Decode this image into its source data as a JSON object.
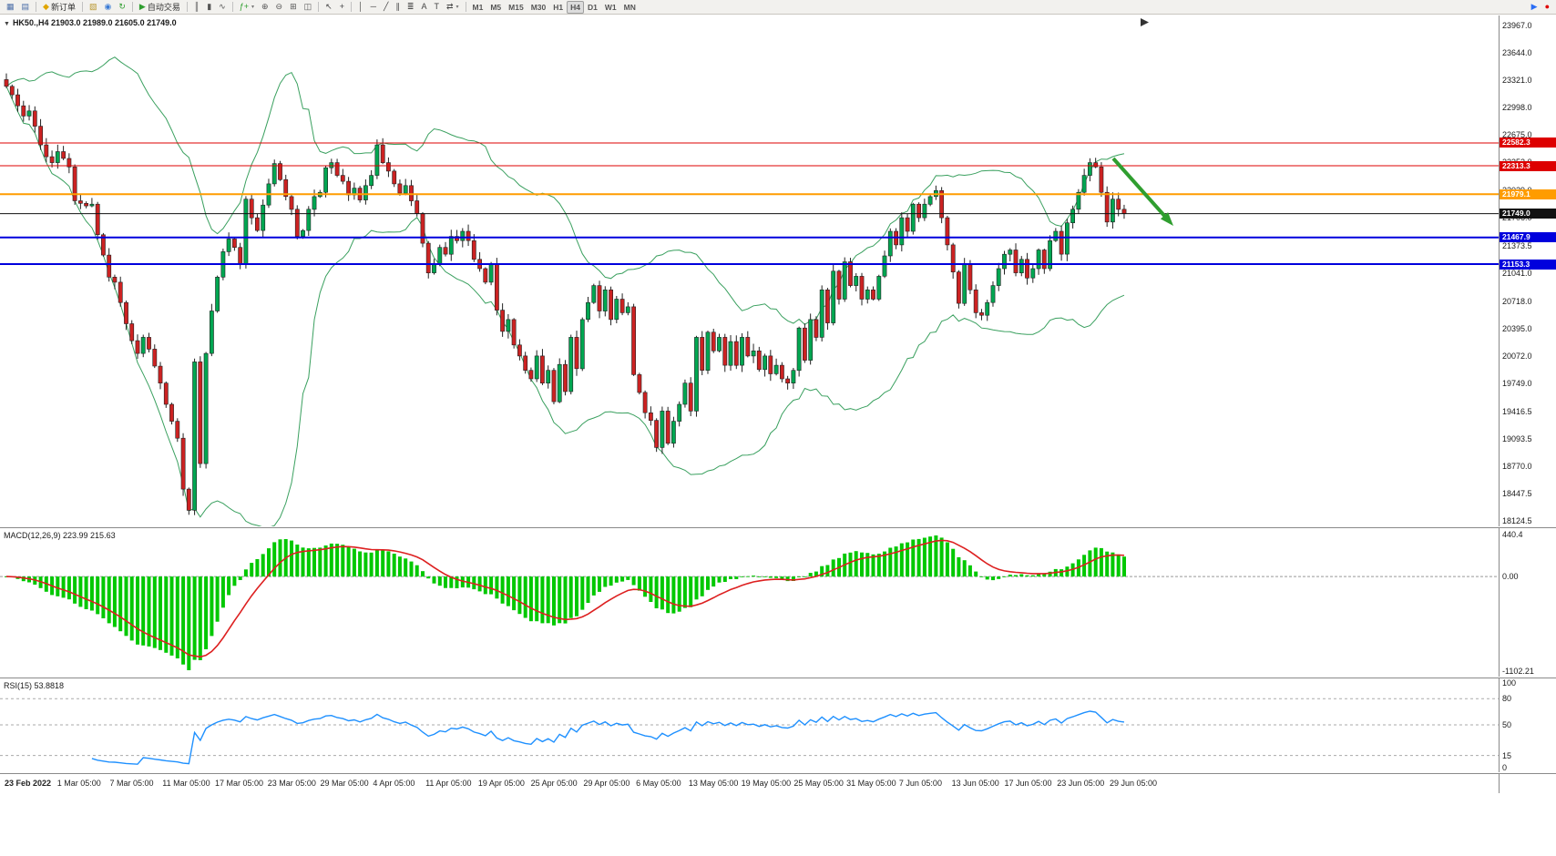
{
  "toolbar": {
    "groups": [
      {
        "items": [
          {
            "name": "market-watch-button",
            "glyph": "▦",
            "color": "#4a6da7"
          },
          {
            "name": "navigator-button",
            "glyph": "▤",
            "color": "#4a6da7"
          }
        ]
      },
      {
        "items": [
          {
            "name": "new-order-button",
            "glyph": "◆",
            "color": "#e0a500",
            "label": "新订单"
          }
        ]
      },
      {
        "items": [
          {
            "name": "metaeditor-button",
            "glyph": "▧",
            "color": "#b8962e"
          },
          {
            "name": "accounts-button",
            "glyph": "◉",
            "color": "#3a7bd5"
          },
          {
            "name": "refresh-button",
            "glyph": "↻",
            "color": "#2f9e2f"
          }
        ]
      },
      {
        "items": [
          {
            "name": "autotrading-button",
            "glyph": "▶",
            "color": "#2f9e2f",
            "label": "自动交易"
          }
        ]
      },
      {
        "items": [
          {
            "name": "bar-chart-button",
            "glyph": "║",
            "color": "#555555"
          },
          {
            "name": "candlestick-chart-button",
            "glyph": "▮",
            "color": "#555555"
          },
          {
            "name": "line-chart-button",
            "glyph": "∿",
            "color": "#555555"
          }
        ]
      },
      {
        "items": [
          {
            "name": "indicators-button",
            "glyph": "ƒ+",
            "color": "#2f9e2f",
            "caret": true
          },
          {
            "name": "zoom-in-button",
            "glyph": "⊕",
            "color": "#555555"
          },
          {
            "name": "zoom-out-button",
            "glyph": "⊖",
            "color": "#555555"
          },
          {
            "name": "tile-windows-button",
            "glyph": "⊞",
            "color": "#555555"
          },
          {
            "name": "cascade-windows-button",
            "glyph": "◫",
            "color": "#555555"
          }
        ]
      },
      {
        "items": [
          {
            "name": "cursor-button",
            "glyph": "↖",
            "color": "#444444"
          },
          {
            "name": "crosshair-button",
            "glyph": "+",
            "color": "#444444"
          }
        ]
      },
      {
        "items": [
          {
            "name": "vertical-line-button",
            "glyph": "│",
            "color": "#444444"
          },
          {
            "name": "horizontal-line-button",
            "glyph": "─",
            "color": "#444444"
          },
          {
            "name": "trendline-button",
            "glyph": "╱",
            "color": "#444444"
          },
          {
            "name": "channel-button",
            "glyph": "∥",
            "color": "#444444"
          },
          {
            "name": "fibonacci-button",
            "glyph": "≣",
            "color": "#444444"
          },
          {
            "name": "text-button",
            "glyph": "A",
            "color": "#444444"
          },
          {
            "name": "text-label-button",
            "glyph": "T",
            "color": "#444444"
          },
          {
            "name": "arrows-button",
            "glyph": "⇄",
            "color": "#444444",
            "caret": true
          }
        ]
      },
      {
        "items": [
          {
            "name": "tf-m1-button",
            "label": "M1",
            "tf": true
          },
          {
            "name": "tf-m5-button",
            "label": "M5",
            "tf": true
          },
          {
            "name": "tf-m15-button",
            "label": "M15",
            "tf": true
          },
          {
            "name": "tf-m30-button",
            "label": "M30",
            "tf": true
          },
          {
            "name": "tf-h1-button",
            "label": "H1",
            "tf": true
          },
          {
            "name": "tf-h4-button",
            "label": "H4",
            "tf": true,
            "active": true
          },
          {
            "name": "tf-d1-button",
            "label": "D1",
            "tf": true
          },
          {
            "name": "tf-w1-button",
            "label": "W1",
            "tf": true
          },
          {
            "name": "tf-mn-button",
            "label": "MN",
            "tf": true
          }
        ]
      },
      {
        "spacer": true,
        "items": [
          {
            "name": "one-click-trading-icon",
            "glyph": "▶",
            "color": "#2a6df5"
          },
          {
            "name": "record-icon",
            "glyph": "●",
            "color": "#e00000"
          }
        ]
      }
    ]
  },
  "main_chart": {
    "collapse_icon": "▼",
    "symbol_label": "HK50.,H4",
    "ohlc_label": "21903.0 21989.0 21605.0 21749.0"
  },
  "macd_panel": {
    "label": "MACD(12,26,9) 223.99 215.63"
  },
  "rsi_panel": {
    "label": "RSI(15) 53.8818"
  },
  "chart_data": {
    "type": "candlestick",
    "symbol": "HK50.",
    "timeframe": "H4",
    "current_ohlc": {
      "open": "21903.0",
      "high": "21989.0",
      "low": "21605.0",
      "close": "21749.0"
    },
    "closes": [
      23250,
      23150,
      23020,
      22900,
      22960,
      22780,
      22560,
      22420,
      22350,
      22480,
      22400,
      22300,
      21900,
      21870,
      21840,
      21860,
      21500,
      21260,
      21000,
      20940,
      20700,
      20450,
      20250,
      20100,
      20290,
      20150,
      19950,
      19750,
      19500,
      19300,
      19100,
      18500,
      18250,
      20000,
      18800,
      20100,
      20600,
      21000,
      21300,
      21450,
      21350,
      21150,
      21920,
      21700,
      21550,
      21850,
      22100,
      22340,
      22150,
      21950,
      21800,
      21480,
      21550,
      21800,
      21950,
      22000,
      22290,
      22350,
      22200,
      22130,
      21970,
      22050,
      21910,
      22080,
      22200,
      22560,
      22350,
      22250,
      22100,
      21990,
      22080,
      21900,
      21750,
      21400,
      21050,
      21150,
      21350,
      21270,
      21480,
      21430,
      21540,
      21430,
      21210,
      21100,
      20940,
      21160,
      20610,
      20360,
      20500,
      20200,
      20070,
      19900,
      19800,
      20070,
      19750,
      19900,
      19530,
      19970,
      19650,
      20290,
      19920,
      20500,
      20700,
      20900,
      20600,
      20850,
      20500,
      20740,
      20580,
      20650,
      19850,
      19640,
      19400,
      19310,
      18990,
      19420,
      19040,
      19300,
      19500,
      19750,
      19420,
      20290,
      19900,
      20350,
      20130,
      20290,
      19960,
      20240,
      19960,
      20290,
      20070,
      20130,
      19910,
      20070,
      19860,
      19960,
      19800,
      19750,
      19900,
      20400,
      20020,
      20500,
      20290,
      20850,
      20460,
      21070,
      20740,
      21180,
      20900,
      21010,
      20740,
      20850,
      20740,
      21010,
      21250,
      21540,
      21380,
      21700,
      21540,
      21860,
      21700,
      21860,
      21950,
      22020,
      21700,
      21380,
      21060,
      20690,
      21160,
      20850,
      20580,
      20550,
      20700,
      20900,
      21100,
      21270,
      21320,
      21050,
      21210,
      20990,
      21100,
      21320,
      21100,
      21430,
      21540,
      21270,
      21640,
      21800,
      22000,
      22200,
      22350,
      22300,
      22000,
      21650,
      21920,
      21800,
      21749
    ],
    "y_axis": {
      "labels": [
        "23967.0",
        "23644.0",
        "23321.0",
        "22998.0",
        "22675.0",
        "22352.0",
        "22029.0",
        "21706.0",
        "21373.5",
        "21041.0",
        "20718.0",
        "20395.0",
        "20072.0",
        "19749.0",
        "19416.5",
        "19093.5",
        "18770.0",
        "18447.5",
        "18124.5"
      ],
      "min": 18124.5,
      "max": 23967.0
    },
    "x_axis_labels": [
      "23 Feb 2022",
      "1 Mar 05:00",
      "7 Mar 05:00",
      "11 Mar 05:00",
      "17 Mar 05:00",
      "23 Mar 05:00",
      "29 Mar 05:00",
      "4 Apr 05:00",
      "11 Apr 05:00",
      "19 Apr 05:00",
      "25 Apr 05:00",
      "29 Apr 05:00",
      "6 May 05:00",
      "13 May 05:00",
      "19 May 05:00",
      "25 May 05:00",
      "31 May 05:00",
      "7 Jun 05:00",
      "13 Jun 05:00",
      "17 Jun 05:00",
      "23 Jun 05:00",
      "29 Jun 05:00"
    ],
    "horizontal_lines": [
      {
        "price": 22582.3,
        "label": "22582.3",
        "color": "#dd0000",
        "width": 1
      },
      {
        "price": 22313.3,
        "label": "22313.3",
        "color": "#dd0000",
        "width": 1
      },
      {
        "price": 21979.1,
        "label": "21979.1",
        "color": "#ff9c00",
        "width": 2
      },
      {
        "price": 21749.0,
        "label": "21749.0",
        "color": "#111111",
        "width": 1
      },
      {
        "price": 21467.9,
        "label": "21467.9",
        "color": "#0000dd",
        "width": 2
      },
      {
        "price": 21153.3,
        "label": "21153.3",
        "color": "#0000dd",
        "width": 2
      }
    ],
    "indicators": {
      "bollinger": {
        "period": 20,
        "deviation": 2,
        "color": "#3aa05f"
      },
      "macd": {
        "params": "12,26,9",
        "value": 223.99,
        "signal": 215.63,
        "axis_top_label": "440.4",
        "axis_zero_label": "0.00",
        "axis_bottom_label": "-1102.21",
        "bar_color": "#00c800",
        "signal_color": "#dd2020"
      },
      "rsi": {
        "period": 15,
        "value": 53.8818,
        "levels": [
          80,
          50,
          15
        ],
        "axis_top_label": "100",
        "axis_bottom_label": "0",
        "line_color": "#1e90ff"
      }
    },
    "annotations": [
      {
        "type": "arrow",
        "color": "#2f9e2f",
        "from_price": 22400,
        "to_price": 21605,
        "direction": "down-right"
      }
    ],
    "candle_up_color": "#00a651",
    "candle_down_color": "#cc2222"
  }
}
